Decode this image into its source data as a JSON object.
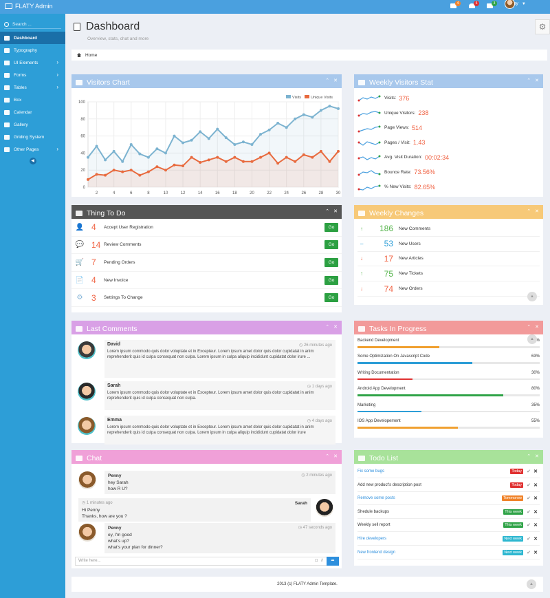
{
  "topbar": {
    "brand": "FLATY Admin",
    "notifications": [
      {
        "icon": "mail-icon",
        "count": "4",
        "color": "#f0832a"
      },
      {
        "icon": "bell-icon",
        "count": "5",
        "color": "#e03131"
      },
      {
        "icon": "mail-icon",
        "count": "3",
        "color": "#2fa347"
      }
    ],
    "user": "Penny"
  },
  "sidebar": {
    "search_placeholder": "Search ...",
    "items": [
      {
        "label": "Dashboard",
        "icon": "dashboard-icon",
        "active": true
      },
      {
        "label": "Typography",
        "icon": "typography-icon"
      },
      {
        "label": "UI Elements",
        "icon": "ui-elements-icon",
        "chevron": true
      },
      {
        "label": "Forms",
        "icon": "forms-icon",
        "chevron": true
      },
      {
        "label": "Tables",
        "icon": "tables-icon",
        "chevron": true
      },
      {
        "label": "Box",
        "icon": "box-icon"
      },
      {
        "label": "Calendar",
        "icon": "calendar-icon"
      },
      {
        "label": "Gallery",
        "icon": "gallery-icon"
      },
      {
        "label": "Griding System",
        "icon": "grid-icon"
      },
      {
        "label": "Other Pages",
        "icon": "pages-icon",
        "chevron": true
      }
    ]
  },
  "page": {
    "title": "Dashboard",
    "subtitle": "Overview, stats, chat and more",
    "breadcrumb": "Home"
  },
  "visitors_chart": {
    "title": "Visitors Chart",
    "legend": [
      "Visits",
      "Unique Visits"
    ]
  },
  "chart_data": {
    "type": "line",
    "title": "",
    "x": [
      1,
      2,
      3,
      4,
      5,
      6,
      7,
      8,
      9,
      10,
      11,
      12,
      13,
      14,
      15,
      16,
      17,
      18,
      19,
      20,
      21,
      22,
      23,
      24,
      25,
      26,
      27,
      28,
      29,
      30
    ],
    "xticks": [
      2,
      4,
      6,
      8,
      10,
      12,
      14,
      16,
      18,
      20,
      22,
      24,
      26,
      28,
      30
    ],
    "ylim": [
      0,
      100
    ],
    "yticks": [
      0,
      20,
      40,
      60,
      80,
      100
    ],
    "grid": true,
    "legend_position": "top-right",
    "series": [
      {
        "name": "Visits",
        "color": "#7cb3d0",
        "values": [
          35,
          48,
          32,
          42,
          30,
          50,
          39,
          35,
          45,
          40,
          60,
          52,
          55,
          65,
          57,
          68,
          58,
          50,
          53,
          50,
          62,
          67,
          75,
          70,
          80,
          85,
          82,
          90,
          95,
          92
        ]
      },
      {
        "name": "Unique Visits",
        "color": "#e86a3e",
        "values": [
          9,
          15,
          14,
          20,
          18,
          20,
          14,
          18,
          24,
          20,
          26,
          25,
          35,
          29,
          32,
          35,
          30,
          35,
          30,
          30,
          35,
          40,
          28,
          35,
          30,
          38,
          35,
          42,
          30,
          42
        ]
      }
    ]
  },
  "weekly_visitors": {
    "title": "Weekly Visitors Stat",
    "stats": [
      {
        "label": "Visits:",
        "value": "376"
      },
      {
        "label": "Unique Visitors:",
        "value": "238"
      },
      {
        "label": "Page Views:",
        "value": "514"
      },
      {
        "label": "Pages / Visit:",
        "value": "1.43"
      },
      {
        "label": "Avg. Visit Duration:",
        "value": "00:02:34"
      },
      {
        "label": "Bounce Rate:",
        "value": "73.56%"
      },
      {
        "label": "% New Visits:",
        "value": "82.65%"
      }
    ]
  },
  "things_todo": {
    "title": "Thing To Do",
    "button": "Go",
    "items": [
      {
        "icon": "user-icon",
        "count": "4",
        "text": "Accept User Registration"
      },
      {
        "icon": "comments-icon",
        "count": "14",
        "text": "Review Comments"
      },
      {
        "icon": "cart-icon",
        "count": "7",
        "text": "Pending Orders"
      },
      {
        "icon": "file-icon",
        "count": "4",
        "text": "New Invoice"
      },
      {
        "icon": "gear-icon",
        "count": "3",
        "text": "Settings To Change"
      }
    ]
  },
  "weekly_changes": {
    "title": "Weekly Changes",
    "items": [
      {
        "dir": "up",
        "value": "186",
        "label": "New Comments",
        "color": "#54b34a"
      },
      {
        "dir": "flat",
        "value": "53",
        "label": "New Users",
        "color": "#2d9ed7"
      },
      {
        "dir": "down",
        "value": "17",
        "label": "New Articles",
        "color": "#f06040"
      },
      {
        "dir": "up",
        "value": "75",
        "label": "New Tickets",
        "color": "#54b34a"
      },
      {
        "dir": "down",
        "value": "74",
        "label": "New Orders",
        "color": "#f06040"
      }
    ]
  },
  "comments": {
    "title": "Last Comments",
    "items": [
      {
        "name": "David",
        "time": "26 minutes ago",
        "text": "Lorem ipsum commodo quis dolor voluptate et in Excepteur. Lorem ipsum amet dolor quis dolor cupidatat in anim reprehenderit quis id culpa consequat non culpa. Lorem ipsum in culpa aliquip incididunt cupidatat dolor irure ..."
      },
      {
        "name": "Sarah",
        "time": "1 days ago",
        "text": "Lorem ipsum commodo quis dolor voluptate et in Excepteur. Lorem ipsum amet dolor quis dolor cupidatat in anim reprehenderit quis id culpa consequat non culpa."
      },
      {
        "name": "Emma",
        "time": "4 days ago",
        "text": "Lorem ipsum commodo quis dolor voluptate et in Excepteur. Lorem ipsum amet dolor quis dolor cupidatat in anim reprehenderit quis id culpa consequat non culpa. Lorem ipsum in culpa aliquip incididunt cupidatat dolor irure"
      }
    ]
  },
  "tasks": {
    "title": "Tasks In Progress",
    "items": [
      {
        "label": "Backend Development",
        "pct": "45%",
        "color": "#f0a030"
      },
      {
        "label": "Some Optimization On Javascript Code",
        "pct": "63%",
        "color": "#2d9ed7"
      },
      {
        "label": "Writing Documentation",
        "pct": "30%",
        "color": "#e03131"
      },
      {
        "label": "Android App Development",
        "pct": "80%",
        "color": "#2fa347"
      },
      {
        "label": "Marketing",
        "pct": "35%",
        "color": "#2d9ed7"
      },
      {
        "label": "IOS App Developement",
        "pct": "55%",
        "color": "#f0a030"
      }
    ]
  },
  "chat": {
    "title": "Chat",
    "input_placeholder": "Write here...",
    "messages": [
      {
        "name": "Penny",
        "time": "2 minutes ago",
        "lines": [
          "hey Sarah",
          "how R U?"
        ]
      },
      {
        "name": "Sarah",
        "time": "1 minutes ago",
        "lines": [
          "Hi Penny",
          "Thanks, how are you ?"
        ]
      },
      {
        "name": "Penny",
        "time": "47 seconds ago",
        "lines": [
          "ey, I'm good",
          "what's up?",
          "what's your plan for dinner?"
        ]
      }
    ]
  },
  "todo": {
    "title": "Todo List",
    "items": [
      {
        "text": "Fix some bugs",
        "tag": "Today",
        "tag_color": "#e03131",
        "link": true
      },
      {
        "text": "Add new product's description post",
        "tag": "Today",
        "tag_color": "#e03131",
        "link": false
      },
      {
        "text": "Remove some posts",
        "tag": "Tommorow",
        "tag_color": "#f0832a",
        "link": true
      },
      {
        "text": "Shedule backups",
        "tag": "This week",
        "tag_color": "#2fa347",
        "link": false
      },
      {
        "text": "Weekly sell report",
        "tag": "This week",
        "tag_color": "#2fa347",
        "link": false
      },
      {
        "text": "Hire developers",
        "tag": "Next week",
        "tag_color": "#2db7d0",
        "link": true
      },
      {
        "text": "New frontend design",
        "tag": "Next week",
        "tag_color": "#2db7d0",
        "link": true
      }
    ]
  },
  "footer": {
    "text": "2013 (c) FLATY Admin Template."
  }
}
